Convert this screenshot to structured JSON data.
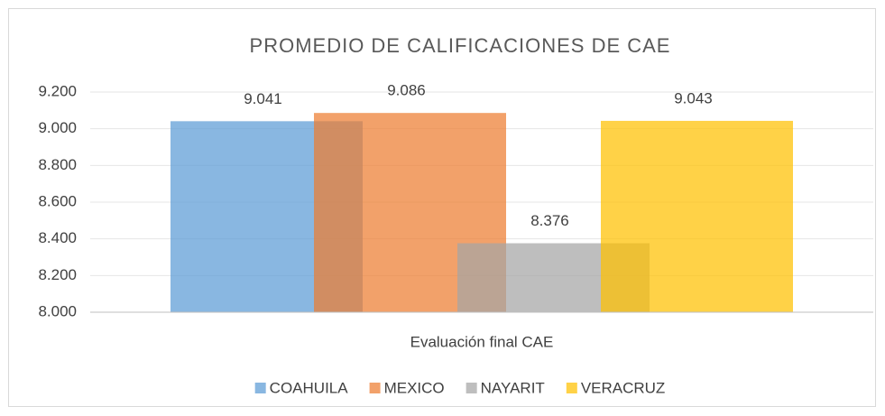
{
  "chart_data": {
    "type": "bar",
    "title": "PROMEDIO DE CALIFICACIONES DE CAE",
    "categories": [
      "Evaluación final CAE"
    ],
    "series": [
      {
        "name": "COAHUILA",
        "color": "#5b9bd5",
        "values": [
          9.041
        ]
      },
      {
        "name": "MEXICO",
        "color": "#ed7d31",
        "values": [
          9.086
        ]
      },
      {
        "name": "NAYARIT",
        "color": "#a5a5a5",
        "values": [
          8.376
        ]
      },
      {
        "name": "VERACRUZ",
        "color": "#ffc000",
        "values": [
          9.043
        ]
      }
    ],
    "ylim": [
      8,
      9.2
    ],
    "yticks": [
      {
        "value": 8,
        "label": "8.000"
      },
      {
        "value": 8.2,
        "label": "8.200"
      },
      {
        "value": 8.4,
        "label": "8.400"
      },
      {
        "value": 8.6,
        "label": "8.600"
      },
      {
        "value": 8.8,
        "label": "8.800"
      },
      {
        "value": 9,
        "label": "9.000"
      },
      {
        "value": 9.2,
        "label": "9.200"
      }
    ],
    "grid": true,
    "legend": "bottom"
  }
}
